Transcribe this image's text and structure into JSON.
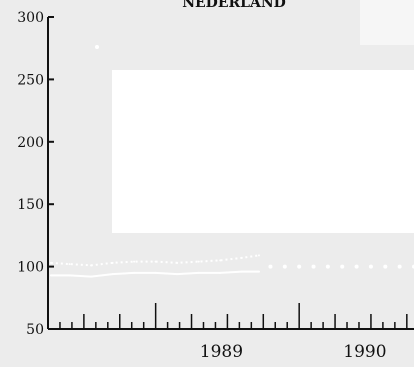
{
  "chart_data": {
    "type": "line",
    "title": "NEDERLAND",
    "xlabel": "",
    "ylabel": "",
    "ylim": [
      50,
      300
    ],
    "y_ticks": [
      "50",
      "100",
      "150",
      "200",
      "250",
      "300"
    ],
    "x_tick_labels": [
      {
        "label": "1989",
        "at": 1989.0
      },
      {
        "label": "1990",
        "at": 1990.0
      }
    ],
    "xlim": [
      1988.25,
      1990.8
    ],
    "grid": false,
    "series": [
      {
        "style": "solid",
        "color": "#ffffff",
        "x": [
          1988.27,
          1988.4,
          1988.55,
          1988.7,
          1988.85,
          1989.0,
          1989.15,
          1989.3,
          1989.45,
          1989.6,
          1989.72
        ],
        "values": [
          93,
          93,
          92,
          94,
          95,
          95,
          94,
          95,
          95,
          96,
          96
        ]
      },
      {
        "style": "dotted",
        "color": "#ffffff",
        "x": [
          1988.27,
          1988.4,
          1988.55,
          1988.7,
          1988.85,
          1989.0,
          1989.15,
          1989.3,
          1989.45,
          1989.6,
          1989.72
        ],
        "values": [
          103,
          102,
          101,
          103,
          104,
          104,
          103,
          104,
          105,
          107,
          109
        ]
      },
      {
        "style": "sparse-dots",
        "color": "#ffffff",
        "x": [
          1989.8,
          1989.9,
          1990.0,
          1990.1,
          1990.2,
          1990.3,
          1990.4,
          1990.5,
          1990.6,
          1990.7,
          1990.8
        ],
        "values": [
          100,
          100,
          100,
          100,
          100,
          100,
          100,
          100,
          100,
          100,
          100
        ]
      }
    ]
  }
}
